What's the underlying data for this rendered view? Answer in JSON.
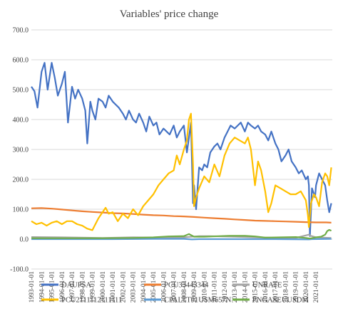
{
  "chart_data": {
    "type": "line",
    "title": "Variables' price change",
    "xlabel": "",
    "ylabel": "",
    "ylim": [
      -100,
      700
    ],
    "yticks": [
      -100,
      0,
      100,
      200,
      300,
      400,
      500,
      600,
      700
    ],
    "ytick_labels": [
      "-100.0",
      "0.0",
      "100.0",
      "200.0",
      "300.0",
      "400.0",
      "500.0",
      "600.0",
      "700.0"
    ],
    "xlim": [
      1993.0,
      2022.6
    ],
    "x_tick_labels": [
      "1993-01-01",
      "1994-01-01",
      "1995-01-01",
      "1996-01-01",
      "1997-01-01",
      "1998-01-01",
      "1999-01-01",
      "2000-01-01",
      "2001-01-01",
      "2002-01-01",
      "2003-01-01",
      "2004-01-01",
      "2005-01-01",
      "2006-01-01",
      "2007-01-01",
      "2008-01-01",
      "2009-01-01",
      "2010-01-01",
      "2011-01-01",
      "2012-01-01",
      "2013-01-01",
      "2014-01-01",
      "2015-01-01",
      "2016-01-01",
      "2017-01-01",
      "2018-01-01",
      "2019-01-01",
      "2020-01-01",
      "2021-01-01"
    ],
    "grid": "horizontal",
    "legend_position": "bottom",
    "series": [
      {
        "name": "DAUPSA",
        "color": "#4472C4",
        "x": [
          1993.0,
          1993.3,
          1993.6,
          1994.0,
          1994.3,
          1994.6,
          1995.0,
          1995.3,
          1995.6,
          1996.0,
          1996.3,
          1996.6,
          1997.0,
          1997.3,
          1997.6,
          1998.0,
          1998.3,
          1998.5,
          1998.8,
          1999.0,
          1999.3,
          1999.6,
          2000.0,
          2000.3,
          2000.6,
          2001.0,
          2001.3,
          2001.6,
          2002.0,
          2002.3,
          2002.6,
          2003.0,
          2003.3,
          2003.6,
          2004.0,
          2004.3,
          2004.6,
          2005.0,
          2005.3,
          2005.6,
          2006.0,
          2006.3,
          2006.6,
          2007.0,
          2007.3,
          2007.6,
          2008.0,
          2008.3,
          2008.5,
          2008.7,
          2008.9,
          2009.0,
          2009.2,
          2009.5,
          2009.8,
          2010.0,
          2010.3,
          2010.6,
          2011.0,
          2011.3,
          2011.6,
          2012.0,
          2012.3,
          2012.6,
          2013.0,
          2013.3,
          2013.6,
          2014.0,
          2014.3,
          2014.6,
          2015.0,
          2015.3,
          2015.6,
          2016.0,
          2016.3,
          2016.6,
          2017.0,
          2017.3,
          2017.6,
          2018.0,
          2018.3,
          2018.6,
          2019.0,
          2019.3,
          2019.6,
          2020.0,
          2020.2,
          2020.3,
          2020.4,
          2020.6,
          2020.9,
          2021.0,
          2021.3,
          2021.6,
          2021.9,
          2022.1,
          2022.3,
          2022.5
        ],
        "values": [
          510,
          495,
          440,
          560,
          590,
          500,
          590,
          540,
          480,
          520,
          560,
          390,
          510,
          470,
          500,
          470,
          430,
          320,
          460,
          430,
          400,
          470,
          460,
          440,
          480,
          460,
          450,
          440,
          420,
          400,
          430,
          400,
          390,
          420,
          390,
          360,
          410,
          380,
          390,
          350,
          370,
          360,
          350,
          380,
          340,
          360,
          380,
          290,
          340,
          390,
          120,
          180,
          100,
          240,
          230,
          250,
          240,
          290,
          310,
          320,
          300,
          340,
          360,
          380,
          370,
          380,
          390,
          360,
          390,
          380,
          370,
          380,
          360,
          350,
          330,
          360,
          320,
          300,
          260,
          280,
          300,
          260,
          240,
          220,
          230,
          200,
          210,
          180,
          10,
          170,
          140,
          180,
          220,
          200,
          180,
          130,
          90,
          120
        ]
      },
      {
        "name": "PCU33443344",
        "color": "#ED7D31",
        "x": [
          1993.0,
          1994.0,
          1995.0,
          1996.0,
          1997.0,
          1998.0,
          1999.0,
          2000.0,
          2001.0,
          2002.0,
          2003.0,
          2004.0,
          2005.0,
          2006.0,
          2007.0,
          2008.0,
          2009.0,
          2010.0,
          2011.0,
          2012.0,
          2013.0,
          2014.0,
          2015.0,
          2016.0,
          2017.0,
          2018.0,
          2019.0,
          2020.0,
          2021.0,
          2022.0,
          2022.5
        ],
        "values": [
          103,
          104,
          102,
          99,
          96,
          93,
          91,
          89,
          87,
          86,
          84,
          82,
          80,
          79,
          77,
          76,
          74,
          72,
          70,
          68,
          66,
          64,
          62,
          61,
          60,
          59,
          58,
          57,
          56,
          56,
          55
        ]
      },
      {
        "name": "UNRATE",
        "color": "#A5A5A5",
        "x": [
          1993.0,
          1996.0,
          2000.0,
          2003.0,
          2006.0,
          2008.0,
          2009.5,
          2010.5,
          2013.0,
          2016.0,
          2019.0,
          2020.3,
          2020.5,
          2021.0,
          2022.5
        ],
        "values": [
          7,
          6,
          4,
          6,
          5,
          6,
          10,
          10,
          8,
          5,
          4,
          15,
          11,
          6,
          4
        ]
      },
      {
        "name": "PCU2111112111111",
        "color": "#FFC000",
        "x": [
          1993.0,
          1993.5,
          1994.0,
          1994.5,
          1995.0,
          1995.5,
          1996.0,
          1996.5,
          1997.0,
          1997.5,
          1998.0,
          1998.5,
          1999.0,
          1999.3,
          1999.6,
          2000.0,
          2000.3,
          2000.6,
          2001.0,
          2001.5,
          2002.0,
          2002.5,
          2003.0,
          2003.5,
          2004.0,
          2004.5,
          2005.0,
          2005.5,
          2006.0,
          2006.5,
          2007.0,
          2007.3,
          2007.6,
          2008.0,
          2008.3,
          2008.5,
          2008.7,
          2008.9,
          2009.0,
          2009.2,
          2009.5,
          2010.0,
          2010.5,
          2011.0,
          2011.5,
          2012.0,
          2012.5,
          2013.0,
          2013.5,
          2014.0,
          2014.3,
          2014.6,
          2015.0,
          2015.3,
          2015.6,
          2016.0,
          2016.3,
          2016.6,
          2017.0,
          2017.5,
          2018.0,
          2018.5,
          2019.0,
          2019.5,
          2020.0,
          2020.2,
          2020.3,
          2020.5,
          2020.8,
          2021.0,
          2021.3,
          2021.6,
          2021.9,
          2022.1,
          2022.3,
          2022.5
        ],
        "values": [
          60,
          50,
          55,
          45,
          55,
          60,
          50,
          60,
          60,
          50,
          45,
          35,
          30,
          50,
          70,
          90,
          105,
          85,
          90,
          60,
          85,
          70,
          100,
          80,
          110,
          130,
          150,
          180,
          200,
          220,
          230,
          280,
          250,
          300,
          330,
          400,
          420,
          250,
          110,
          140,
          170,
          210,
          190,
          250,
          210,
          280,
          320,
          340,
          330,
          320,
          340,
          300,
          180,
          260,
          230,
          160,
          90,
          120,
          180,
          170,
          160,
          150,
          150,
          160,
          130,
          80,
          40,
          120,
          150,
          140,
          110,
          190,
          220,
          210,
          180,
          240
        ]
      },
      {
        "name": "CPALTT01USM657N",
        "color": "#5B9BD5",
        "x": [
          1993.0,
          1997.0,
          2001.0,
          2005.0,
          2008.0,
          2008.8,
          2009.5,
          2013.0,
          2017.0,
          2020.3,
          2020.6,
          2022.5
        ],
        "values": [
          0,
          0,
          0,
          1,
          1,
          -1,
          0,
          0,
          0,
          -1,
          0,
          1
        ]
      },
      {
        "name": "PNGASEUUSDM",
        "color": "#70AD47",
        "x": [
          1993.0,
          1996.0,
          2000.0,
          2003.0,
          2005.0,
          2006.5,
          2008.0,
          2008.5,
          2009.0,
          2010.0,
          2011.5,
          2012.5,
          2014.0,
          2015.0,
          2016.0,
          2017.5,
          2019.0,
          2020.0,
          2020.4,
          2021.0,
          2021.5,
          2021.9,
          2022.1,
          2022.3,
          2022.5
        ],
        "values": [
          3,
          3,
          3,
          4,
          6,
          9,
          10,
          17,
          8,
          8,
          10,
          11,
          11,
          9,
          5,
          6,
          7,
          4,
          2,
          6,
          8,
          15,
          27,
          31,
          28
        ]
      }
    ]
  }
}
